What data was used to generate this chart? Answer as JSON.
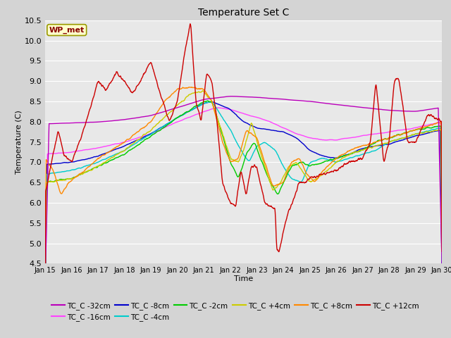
{
  "title": "Temperature Set C",
  "xlabel": "Time",
  "ylabel": "Temperature (C)",
  "ylim": [
    4.5,
    10.5
  ],
  "fig_facecolor": "#d4d4d4",
  "plot_facecolor": "#e8e8e8",
  "grid_color": "white",
  "series_colors": {
    "TC_C -32cm": "#bb00bb",
    "TC_C -16cm": "#ff44ff",
    "TC_C -8cm": "#0000cc",
    "TC_C -4cm": "#00cccc",
    "TC_C -2cm": "#00cc00",
    "TC_C +4cm": "#cccc00",
    "TC_C +8cm": "#ff8800",
    "TC_C +12cm": "#cc0000"
  },
  "xtick_labels": [
    "Jan 15",
    "Jan 16",
    "Jan 17",
    "Jan 18",
    "Jan 19",
    "Jan 20",
    "Jan 21",
    "Jan 22",
    "Jan 23",
    "Jan 24",
    "Jan 25",
    "Jan 26",
    "Jan 27",
    "Jan 28",
    "Jan 29",
    "Jan 30"
  ],
  "wp_met_box_color": "#ffffcc",
  "wp_met_text_color": "#880000",
  "wp_met_edge_color": "#999900"
}
